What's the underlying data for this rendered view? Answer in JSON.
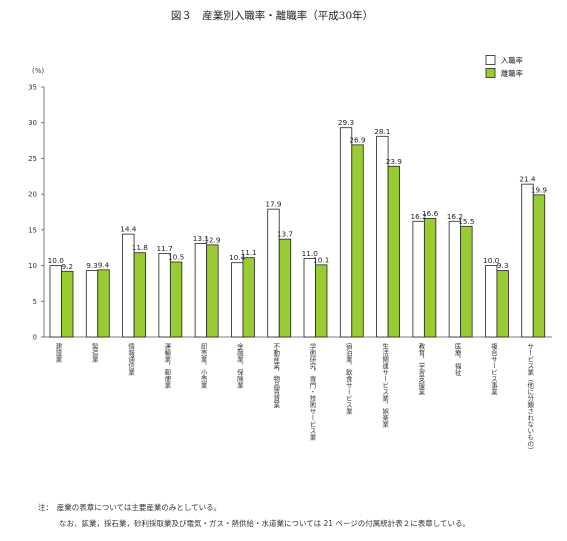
{
  "chart_data": {
    "type": "bar",
    "title": "図３　産業別入職率・離職率（平成30年）",
    "unit_label": "(%)",
    "ylim": [
      0,
      35
    ],
    "yticks": [
      0,
      5,
      10,
      15,
      20,
      25,
      30,
      35
    ],
    "grid": false,
    "legend_position": "top-right",
    "categories": [
      "建設業",
      "製造業",
      "情報通信業",
      "運輸業，郵便業",
      "卸売業，小売業",
      "金融業，保険業",
      "不動産業，物品賃貸業",
      "学術研究，専門・技術サービス業",
      "宿泊業，飲食サービス業",
      "生活関連サービス業，娯楽業",
      "教育，学習支援業",
      "医療，福祉",
      "複合サービス事業",
      "サービス業（他に分類されないもの）"
    ],
    "series": [
      {
        "name": "入職率",
        "color": "#ffffff",
        "values": [
          10.0,
          9.3,
          14.4,
          11.7,
          13.1,
          10.4,
          17.9,
          11.0,
          29.3,
          28.1,
          16.2,
          16.2,
          10.0,
          21.4
        ]
      },
      {
        "name": "離職率",
        "color": "#99cc33",
        "values": [
          9.2,
          9.4,
          11.8,
          10.5,
          12.9,
          11.1,
          13.7,
          10.1,
          26.9,
          23.9,
          16.6,
          15.5,
          9.3,
          19.9
        ]
      }
    ]
  },
  "notes": [
    "注：　産業の表章については主要産業のみとしている。",
    "なお、鉱業，採石業，砂利採取業及び電気・ガス・熱供給・水道業については 21 ページの付属統計表２に表章している。"
  ]
}
